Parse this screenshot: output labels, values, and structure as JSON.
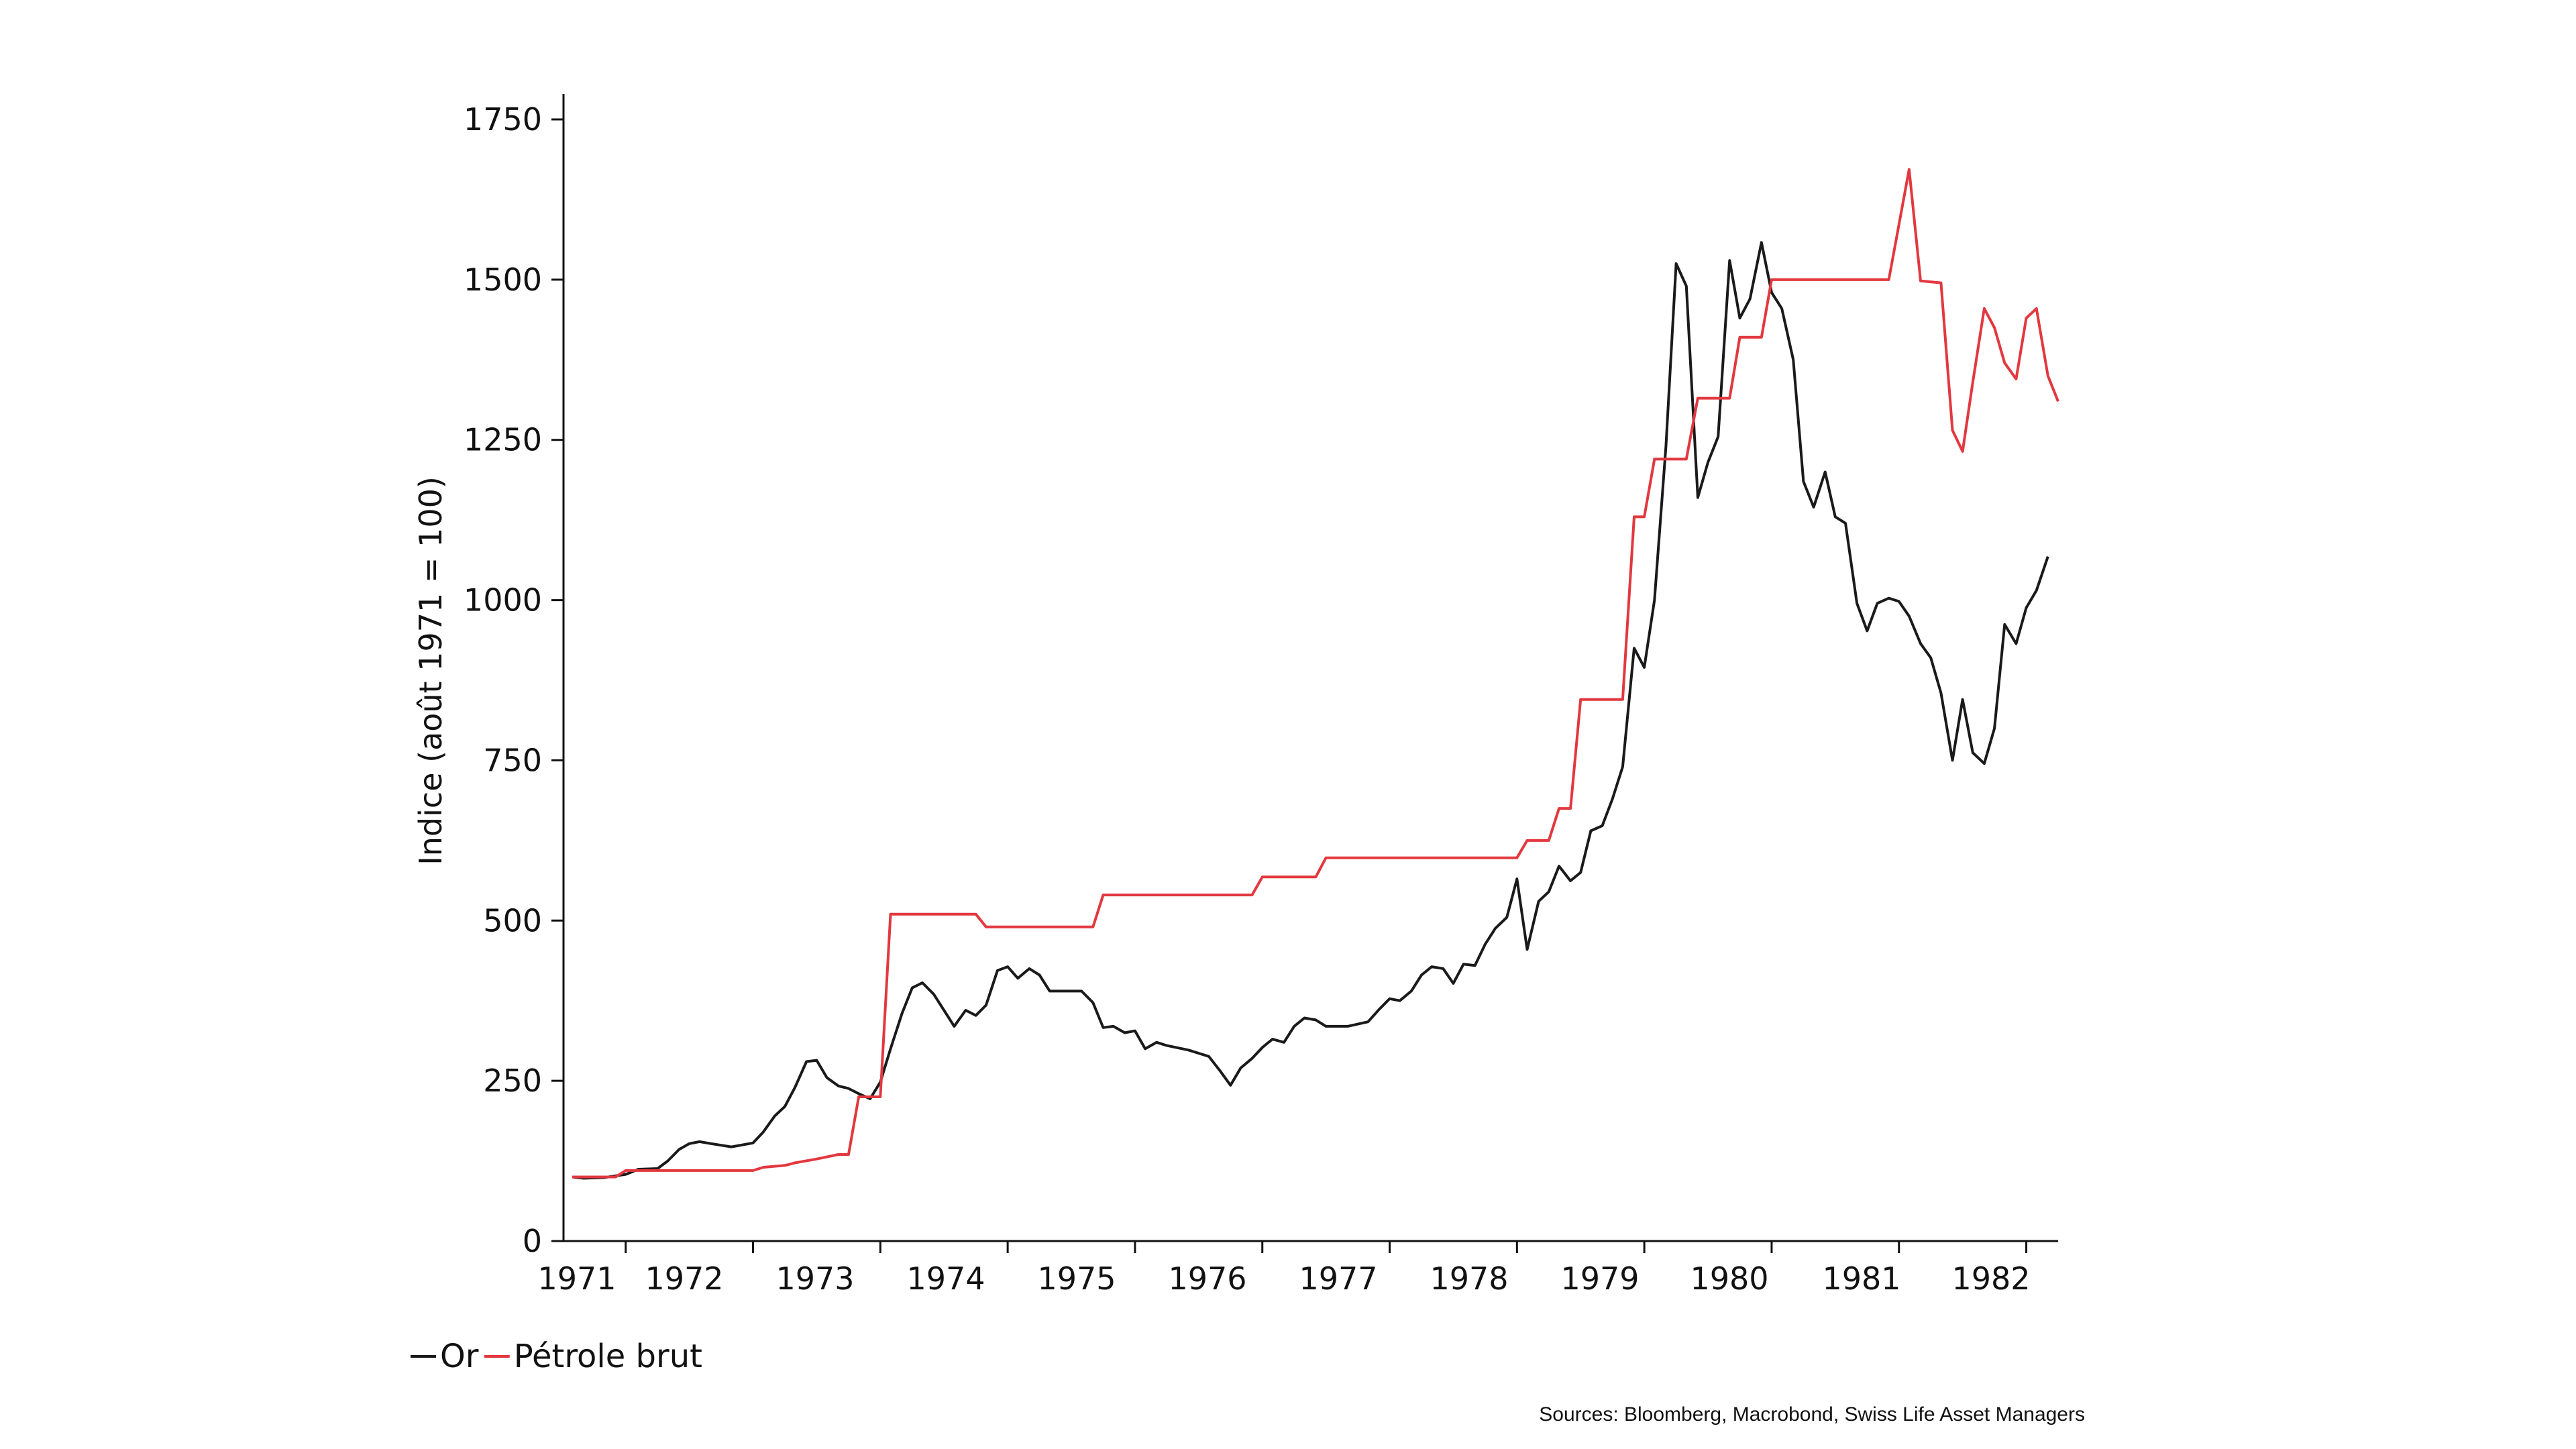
{
  "chart_data": {
    "type": "line",
    "ylabel": "Indice (août 1971 = 100)",
    "xlabel": "",
    "ylim": [
      0,
      1750
    ],
    "yticks": [
      0,
      250,
      500,
      750,
      1000,
      1250,
      1500,
      1750
    ],
    "xlim": [
      1971.58,
      1982.75
    ],
    "xticks": [
      "1971",
      "1972",
      "1973",
      "1974",
      "1975",
      "1976",
      "1977",
      "1978",
      "1979",
      "1980",
      "1981",
      "1982"
    ],
    "legend_placement": "bottom-left",
    "grid": false,
    "series": [
      {
        "name": "Or",
        "color": "#1a1a1a",
        "points": [
          [
            1971.58,
            100
          ],
          [
            1971.67,
            98
          ],
          [
            1971.83,
            99
          ],
          [
            1972.0,
            104
          ],
          [
            1972.1,
            112
          ],
          [
            1972.25,
            113
          ],
          [
            1972.33,
            125
          ],
          [
            1972.42,
            143
          ],
          [
            1972.5,
            152
          ],
          [
            1972.58,
            155
          ],
          [
            1972.67,
            152
          ],
          [
            1972.83,
            147
          ],
          [
            1973.0,
            153
          ],
          [
            1973.08,
            170
          ],
          [
            1973.17,
            195
          ],
          [
            1973.25,
            210
          ],
          [
            1973.33,
            240
          ],
          [
            1973.42,
            280
          ],
          [
            1973.5,
            282
          ],
          [
            1973.58,
            255
          ],
          [
            1973.67,
            242
          ],
          [
            1973.75,
            238
          ],
          [
            1973.83,
            230
          ],
          [
            1973.92,
            222
          ],
          [
            1974.0,
            248
          ],
          [
            1974.08,
            300
          ],
          [
            1974.17,
            355
          ],
          [
            1974.25,
            395
          ],
          [
            1974.33,
            403
          ],
          [
            1974.42,
            385
          ],
          [
            1974.5,
            360
          ],
          [
            1974.58,
            335
          ],
          [
            1974.67,
            360
          ],
          [
            1974.75,
            352
          ],
          [
            1974.83,
            368
          ],
          [
            1974.92,
            422
          ],
          [
            1975.0,
            428
          ],
          [
            1975.08,
            410
          ],
          [
            1975.17,
            425
          ],
          [
            1975.25,
            415
          ],
          [
            1975.33,
            390
          ],
          [
            1975.5,
            390
          ],
          [
            1975.58,
            390
          ],
          [
            1975.67,
            372
          ],
          [
            1975.75,
            333
          ],
          [
            1975.83,
            335
          ],
          [
            1975.92,
            325
          ],
          [
            1976.0,
            328
          ],
          [
            1976.08,
            300
          ],
          [
            1976.17,
            310
          ],
          [
            1976.25,
            305
          ],
          [
            1976.42,
            298
          ],
          [
            1976.58,
            288
          ],
          [
            1976.67,
            265
          ],
          [
            1976.75,
            243
          ],
          [
            1976.83,
            270
          ],
          [
            1976.92,
            285
          ],
          [
            1977.0,
            302
          ],
          [
            1977.08,
            315
          ],
          [
            1977.17,
            310
          ],
          [
            1977.25,
            335
          ],
          [
            1977.33,
            348
          ],
          [
            1977.42,
            345
          ],
          [
            1977.5,
            335
          ],
          [
            1977.67,
            335
          ],
          [
            1977.83,
            342
          ],
          [
            1977.92,
            362
          ],
          [
            1978.0,
            378
          ],
          [
            1978.08,
            375
          ],
          [
            1978.17,
            390
          ],
          [
            1978.25,
            415
          ],
          [
            1978.33,
            428
          ],
          [
            1978.42,
            425
          ],
          [
            1978.5,
            402
          ],
          [
            1978.58,
            432
          ],
          [
            1978.67,
            430
          ],
          [
            1978.75,
            463
          ],
          [
            1978.83,
            488
          ],
          [
            1978.92,
            505
          ],
          [
            1979.0,
            565
          ],
          [
            1979.08,
            455
          ],
          [
            1979.17,
            530
          ],
          [
            1979.25,
            545
          ],
          [
            1979.33,
            585
          ],
          [
            1979.42,
            562
          ],
          [
            1979.5,
            575
          ],
          [
            1979.58,
            640
          ],
          [
            1979.67,
            648
          ],
          [
            1979.75,
            690
          ],
          [
            1979.83,
            740
          ],
          [
            1979.92,
            925
          ],
          [
            1980.0,
            895
          ],
          [
            1980.08,
            1000
          ],
          [
            1980.17,
            1240
          ],
          [
            1980.25,
            1525
          ],
          [
            1980.33,
            1490
          ],
          [
            1980.42,
            1160
          ],
          [
            1980.5,
            1215
          ],
          [
            1980.58,
            1255
          ],
          [
            1980.67,
            1530
          ],
          [
            1980.75,
            1440
          ],
          [
            1980.83,
            1470
          ],
          [
            1980.92,
            1558
          ],
          [
            1981.0,
            1480
          ],
          [
            1981.08,
            1455
          ],
          [
            1981.17,
            1375
          ],
          [
            1981.25,
            1185
          ],
          [
            1981.33,
            1145
          ],
          [
            1981.42,
            1200
          ],
          [
            1981.5,
            1130
          ],
          [
            1981.58,
            1120
          ],
          [
            1981.67,
            995
          ],
          [
            1981.75,
            952
          ],
          [
            1981.83,
            995
          ],
          [
            1981.92,
            1003
          ],
          [
            1982.0,
            998
          ],
          [
            1982.08,
            975
          ],
          [
            1982.17,
            932
          ],
          [
            1982.25,
            910
          ],
          [
            1982.33,
            855
          ],
          [
            1982.42,
            750
          ],
          [
            1982.5,
            845
          ],
          [
            1982.58,
            762
          ],
          [
            1982.67,
            745
          ],
          [
            1982.75,
            800
          ],
          [
            1982.83,
            962
          ],
          [
            1982.92,
            932
          ],
          [
            1983.0,
            988
          ],
          [
            1983.08,
            1015
          ],
          [
            1983.17,
            1068
          ]
        ]
      },
      {
        "name": "Pétrole brut",
        "color": "#e2383f",
        "points": [
          [
            1971.58,
            100
          ],
          [
            1971.92,
            100
          ],
          [
            1972.0,
            110
          ],
          [
            1973.0,
            110
          ],
          [
            1973.08,
            115
          ],
          [
            1973.25,
            118
          ],
          [
            1973.33,
            122
          ],
          [
            1973.5,
            128
          ],
          [
            1973.67,
            135
          ],
          [
            1973.75,
            135
          ],
          [
            1973.83,
            225
          ],
          [
            1973.92,
            225
          ],
          [
            1974.0,
            225
          ],
          [
            1974.08,
            510
          ],
          [
            1974.75,
            510
          ],
          [
            1974.83,
            490
          ],
          [
            1975.67,
            490
          ],
          [
            1975.75,
            540
          ],
          [
            1976.92,
            540
          ],
          [
            1977.0,
            568
          ],
          [
            1977.42,
            568
          ],
          [
            1977.5,
            598
          ],
          [
            1978.92,
            598
          ],
          [
            1979.0,
            598
          ],
          [
            1979.08,
            625
          ],
          [
            1979.25,
            625
          ],
          [
            1979.33,
            675
          ],
          [
            1979.42,
            675
          ],
          [
            1979.5,
            845
          ],
          [
            1979.83,
            845
          ],
          [
            1979.92,
            1130
          ],
          [
            1980.0,
            1130
          ],
          [
            1980.08,
            1220
          ],
          [
            1980.33,
            1220
          ],
          [
            1980.42,
            1315
          ],
          [
            1980.67,
            1315
          ],
          [
            1980.75,
            1410
          ],
          [
            1980.92,
            1410
          ],
          [
            1981.0,
            1500
          ],
          [
            1981.75,
            1500
          ],
          [
            1981.83,
            1500
          ],
          [
            1981.92,
            1500
          ],
          [
            1982.08,
            1672
          ],
          [
            1982.17,
            1498
          ],
          [
            1982.33,
            1495
          ],
          [
            1982.42,
            1265
          ],
          [
            1982.5,
            1232
          ],
          [
            1982.58,
            1340
          ],
          [
            1982.67,
            1455
          ],
          [
            1982.75,
            1425
          ],
          [
            1982.83,
            1370
          ],
          [
            1982.92,
            1345
          ],
          [
            1983.0,
            1440
          ],
          [
            1983.08,
            1455
          ],
          [
            1983.17,
            1350
          ],
          [
            1983.25,
            1310
          ]
        ]
      }
    ]
  },
  "source": "Sources: Bloomberg, Macrobond, Swiss Life Asset Managers"
}
